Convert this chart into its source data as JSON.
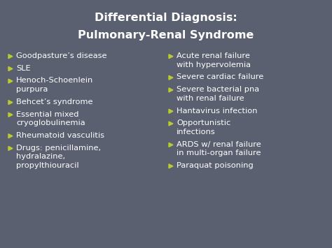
{
  "title_line1": "Differential Diagnosis:",
  "title_line2": "Pulmonary-Renal Syndrome",
  "bg_color": "#5a6070",
  "title_color": "#ffffff",
  "bullet_color": "#b8cc30",
  "text_color": "#ffffff",
  "left_items": [
    "Goodpasture’s disease",
    "SLE",
    "Henoch-Schoenlein\npurpura",
    "Behcet’s syndrome",
    "Essential mixed\ncryoglobulinemia",
    "Rheumatoid vasculitis",
    "Drugs: penicillamine,\nhydralazine,\npropylthiouracil"
  ],
  "right_items": [
    "Acute renal failure\nwith hypervolemia",
    "Severe cardiac failure",
    "Severe bacterial pna\nwith renal failure",
    "Hantavirus infection",
    "Opportunistic\ninfections",
    "ARDS w/ renal failure\nin multi-organ failure",
    "Paraquat poisoning"
  ],
  "title_fontsize": 11.5,
  "body_fontsize": 8.2,
  "fig_width": 4.74,
  "fig_height": 3.55,
  "dpi": 100
}
